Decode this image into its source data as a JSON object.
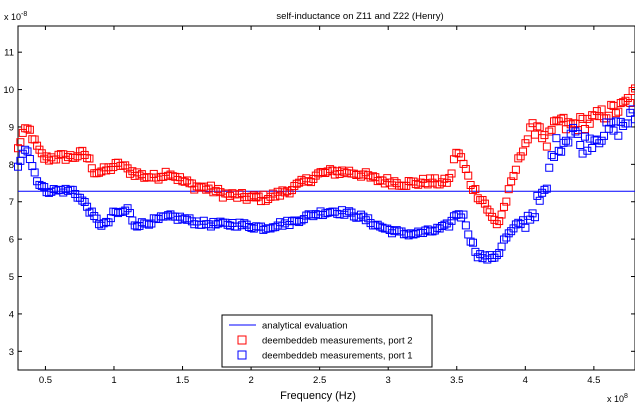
{
  "chart_data": {
    "type": "scatter",
    "title": "self-inductance on Z11 and Z22       (Henry)",
    "xlabel": "Frequency (Hz)",
    "ylabel": "",
    "x_exponent_label": "x 10",
    "x_exponent": "8",
    "y_exponent_label": "x 10",
    "y_exponent": "-8",
    "xlim": [
      0.3,
      4.8
    ],
    "ylim": [
      2.5,
      11.7
    ],
    "x_ticks": [
      0.5,
      1,
      1.5,
      2,
      2.5,
      3,
      3.5,
      4,
      4.5
    ],
    "x_tick_labels": [
      "0.5",
      "1",
      "1.5",
      "2",
      "2.5",
      "3",
      "3.5",
      "4",
      "4.5"
    ],
    "y_ticks": [
      3,
      4,
      5,
      6,
      7,
      8,
      9,
      10,
      11
    ],
    "y_tick_labels": [
      "3",
      "4",
      "5",
      "6",
      "7",
      "8",
      "9",
      "10",
      "11"
    ],
    "grid": false,
    "legend_position": "bottom-center",
    "colors": {
      "analytical": "#0000ff",
      "port2": "#ff0000",
      "port1": "#0000ff"
    },
    "analytical": {
      "name": "analytical evaluation",
      "y": 7.28
    },
    "series": [
      {
        "name": "deembeddeb measurements, port 2",
        "marker": "square",
        "color": "#ff0000",
        "anchors": [
          [
            0.3,
            8.4
          ],
          [
            0.33,
            8.8
          ],
          [
            0.38,
            8.95
          ],
          [
            0.42,
            8.6
          ],
          [
            0.46,
            8.3
          ],
          [
            0.5,
            8.15
          ],
          [
            0.6,
            8.2
          ],
          [
            0.7,
            8.2
          ],
          [
            0.78,
            8.3
          ],
          [
            0.82,
            8.1
          ],
          [
            0.86,
            7.8
          ],
          [
            0.9,
            7.8
          ],
          [
            0.95,
            7.85
          ],
          [
            1.0,
            7.95
          ],
          [
            1.05,
            8.0
          ],
          [
            1.1,
            7.85
          ],
          [
            1.2,
            7.7
          ],
          [
            1.3,
            7.65
          ],
          [
            1.4,
            7.8
          ],
          [
            1.5,
            7.55
          ],
          [
            1.6,
            7.4
          ],
          [
            1.7,
            7.35
          ],
          [
            1.8,
            7.2
          ],
          [
            1.9,
            7.15
          ],
          [
            2.0,
            7.1
          ],
          [
            2.1,
            7.1
          ],
          [
            2.2,
            7.2
          ],
          [
            2.3,
            7.35
          ],
          [
            2.4,
            7.55
          ],
          [
            2.5,
            7.75
          ],
          [
            2.6,
            7.8
          ],
          [
            2.7,
            7.8
          ],
          [
            2.8,
            7.75
          ],
          [
            2.9,
            7.6
          ],
          [
            3.0,
            7.55
          ],
          [
            3.1,
            7.5
          ],
          [
            3.2,
            7.5
          ],
          [
            3.3,
            7.55
          ],
          [
            3.4,
            7.5
          ],
          [
            3.45,
            7.6
          ],
          [
            3.5,
            8.4
          ],
          [
            3.55,
            8.0
          ],
          [
            3.6,
            7.5
          ],
          [
            3.65,
            7.2
          ],
          [
            3.7,
            7.0
          ],
          [
            3.75,
            6.6
          ],
          [
            3.8,
            6.4
          ],
          [
            3.85,
            6.9
          ],
          [
            3.9,
            7.5
          ],
          [
            3.95,
            8.1
          ],
          [
            4.0,
            8.6
          ],
          [
            4.05,
            8.9
          ],
          [
            4.1,
            9.1
          ],
          [
            4.15,
            8.5
          ],
          [
            4.2,
            8.9
          ],
          [
            4.25,
            9.2
          ],
          [
            4.3,
            9.0
          ],
          [
            4.4,
            9.1
          ],
          [
            4.5,
            9.2
          ],
          [
            4.6,
            9.4
          ],
          [
            4.7,
            9.5
          ],
          [
            4.8,
            9.9
          ]
        ],
        "noise": [
          0.1,
          0.1,
          0.2
        ]
      },
      {
        "name": "deembeddeb measurements, port 1",
        "marker": "square",
        "color": "#0000ff",
        "anchors": [
          [
            0.3,
            7.9
          ],
          [
            0.33,
            8.3
          ],
          [
            0.36,
            8.5
          ],
          [
            0.4,
            8.0
          ],
          [
            0.45,
            7.5
          ],
          [
            0.5,
            7.3
          ],
          [
            0.6,
            7.3
          ],
          [
            0.7,
            7.3
          ],
          [
            0.75,
            7.1
          ],
          [
            0.8,
            6.9
          ],
          [
            0.85,
            6.6
          ],
          [
            0.9,
            6.4
          ],
          [
            0.95,
            6.4
          ],
          [
            1.0,
            6.7
          ],
          [
            1.05,
            6.7
          ],
          [
            1.1,
            6.8
          ],
          [
            1.15,
            6.4
          ],
          [
            1.2,
            6.4
          ],
          [
            1.3,
            6.5
          ],
          [
            1.4,
            6.6
          ],
          [
            1.5,
            6.55
          ],
          [
            1.6,
            6.45
          ],
          [
            1.7,
            6.4
          ],
          [
            1.8,
            6.4
          ],
          [
            1.9,
            6.4
          ],
          [
            2.0,
            6.35
          ],
          [
            2.1,
            6.3
          ],
          [
            2.2,
            6.4
          ],
          [
            2.3,
            6.45
          ],
          [
            2.4,
            6.6
          ],
          [
            2.5,
            6.7
          ],
          [
            2.6,
            6.75
          ],
          [
            2.7,
            6.7
          ],
          [
            2.8,
            6.6
          ],
          [
            2.9,
            6.4
          ],
          [
            3.0,
            6.25
          ],
          [
            3.1,
            6.15
          ],
          [
            3.2,
            6.15
          ],
          [
            3.3,
            6.2
          ],
          [
            3.4,
            6.3
          ],
          [
            3.45,
            6.4
          ],
          [
            3.5,
            6.7
          ],
          [
            3.55,
            6.6
          ],
          [
            3.6,
            6.0
          ],
          [
            3.65,
            5.6
          ],
          [
            3.7,
            5.5
          ],
          [
            3.75,
            5.5
          ],
          [
            3.8,
            5.6
          ],
          [
            3.85,
            6.0
          ],
          [
            3.9,
            6.2
          ],
          [
            3.95,
            6.4
          ],
          [
            4.0,
            6.5
          ],
          [
            4.05,
            6.7
          ],
          [
            4.1,
            7.0
          ],
          [
            4.15,
            7.2
          ],
          [
            4.2,
            8.4
          ],
          [
            4.3,
            8.7
          ],
          [
            4.35,
            9.0
          ],
          [
            4.4,
            8.5
          ],
          [
            4.5,
            8.7
          ],
          [
            4.6,
            8.9
          ],
          [
            4.7,
            9.0
          ],
          [
            4.75,
            9.2
          ],
          [
            4.8,
            9.3
          ]
        ],
        "noise": [
          0.07,
          0.08,
          0.25
        ]
      }
    ]
  }
}
